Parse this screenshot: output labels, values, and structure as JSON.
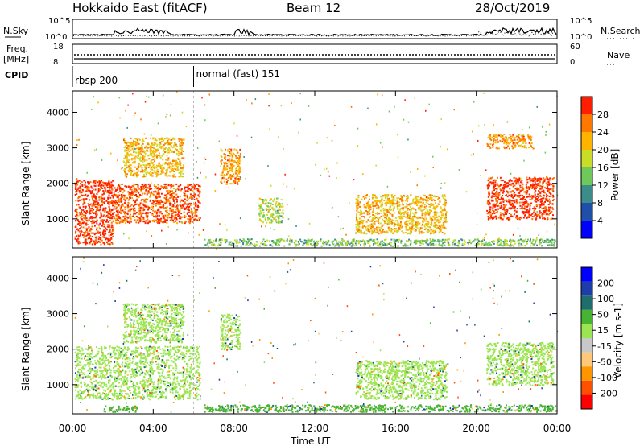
{
  "header": {
    "radar": "Hokkaido East (fitACF)",
    "beam": "Beam 12",
    "date": "28/Oct/2019"
  },
  "top_panels": {
    "nsky_label": "N.Sky",
    "nsky_ticks": [
      "10^5",
      "10^0"
    ],
    "nsearch_label": "N.Search",
    "nsearch_ticks": [
      "10^5",
      "10^0"
    ],
    "freq_label": "Freq.",
    "freq_unit": "[MHz]",
    "freq_ticks": [
      "18",
      "8"
    ],
    "nave_label": "Nave",
    "nave_ticks": [
      "60",
      "0"
    ],
    "cpid_label": "CPID",
    "cpid_segments": [
      {
        "name": "rbsp 200",
        "start_hour": 0
      },
      {
        "name": "normal (fast) 151",
        "start_hour": 6
      }
    ]
  },
  "axes": {
    "x_ticks": [
      "00:00",
      "04:00",
      "08:00",
      "12:00",
      "16:00",
      "20:00",
      "00:00"
    ],
    "x_label": "Time UT",
    "y_label": "Slant Range [km]",
    "y_ticks": [
      "1000",
      "2000",
      "3000",
      "4000"
    ]
  },
  "colors": {
    "power_scale": [
      "#0000ff",
      "#1e50aa",
      "#3c8c8c",
      "#6ec85a",
      "#c8dc28",
      "#ffb400",
      "#ff7800",
      "#ff1e00"
    ],
    "velocity_scale": [
      "#ff0000",
      "#ff5000",
      "#ff9600",
      "#ffc878",
      "#c8c8c8",
      "#9be650",
      "#46b432",
      "#1e6e6e",
      "#1e3caa",
      "#0000ff"
    ]
  },
  "chart_data": [
    {
      "type": "heatmap",
      "title": "Power",
      "xlabel": "Time UT",
      "ylabel": "Slant Range [km]",
      "xlim": [
        0,
        24
      ],
      "ylim": [
        180,
        4600
      ],
      "colorbar": {
        "label": "Power [dB]",
        "range": [
          0,
          32
        ],
        "ticks": [
          "4",
          "8",
          "12",
          "16",
          "20",
          "24",
          "28"
        ]
      },
      "regions": [
        {
          "t": [
            0.1,
            2.0
          ],
          "r": [
            300,
            2100
          ],
          "value": 30
        },
        {
          "t": [
            2.0,
            6.3
          ],
          "r": [
            900,
            2000
          ],
          "value": 28
        },
        {
          "t": [
            2.5,
            5.5
          ],
          "r": [
            2200,
            3300
          ],
          "value": 22
        },
        {
          "t": [
            7.3,
            8.3
          ],
          "r": [
            2000,
            3000
          ],
          "value": 24
        },
        {
          "t": [
            9.2,
            10.4
          ],
          "r": [
            900,
            1600
          ],
          "value": 16
        },
        {
          "t": [
            14.0,
            18.5
          ],
          "r": [
            600,
            1700
          ],
          "value": 22
        },
        {
          "t": [
            6.5,
            23.9
          ],
          "r": [
            250,
            450
          ],
          "value": 14
        },
        {
          "t": [
            20.5,
            23.8
          ],
          "r": [
            1000,
            2200
          ],
          "value": 30
        },
        {
          "t": [
            20.5,
            22.8
          ],
          "r": [
            3000,
            3400
          ],
          "value": 24
        }
      ]
    },
    {
      "type": "heatmap",
      "title": "Velocity",
      "xlabel": "Time UT",
      "ylabel": "Slant Range [km]",
      "xlim": [
        0,
        24
      ],
      "ylim": [
        180,
        4600
      ],
      "colorbar": {
        "label": "Velocity [m s-1]",
        "range": [
          -250,
          250
        ],
        "ticks": [
          "-200",
          "-100",
          "-50",
          "-15",
          "15",
          "50",
          "100",
          "200"
        ]
      },
      "regions": [
        {
          "t": [
            0.1,
            6.3
          ],
          "r": [
            600,
            2100
          ],
          "value": 0
        },
        {
          "t": [
            2.5,
            5.5
          ],
          "r": [
            2200,
            3300
          ],
          "value": 0
        },
        {
          "t": [
            7.3,
            8.3
          ],
          "r": [
            2000,
            3000
          ],
          "value": 0
        },
        {
          "t": [
            14.0,
            18.5
          ],
          "r": [
            600,
            1700
          ],
          "value": 0
        },
        {
          "t": [
            6.5,
            23.9
          ],
          "r": [
            250,
            450
          ],
          "value": 30
        },
        {
          "t": [
            20.5,
            23.8
          ],
          "r": [
            1000,
            2200
          ],
          "value": 0
        },
        {
          "t": [
            1.5,
            3.2
          ],
          "r": [
            250,
            420
          ],
          "value": 30
        }
      ]
    }
  ]
}
